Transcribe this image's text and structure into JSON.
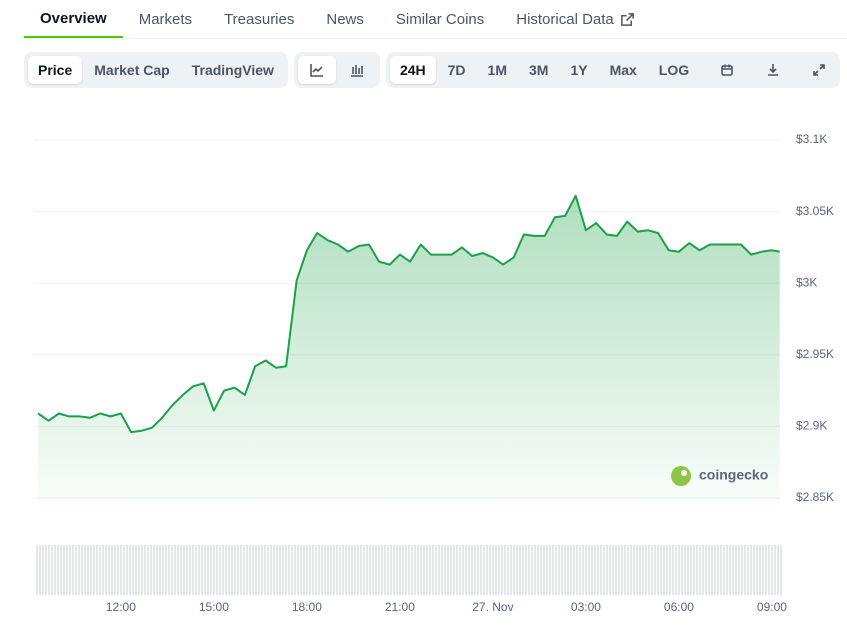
{
  "tabs": [
    "Overview",
    "Markets",
    "Treasuries",
    "News",
    "Similar Coins",
    "Historical Data"
  ],
  "view_buttons": [
    "Price",
    "Market Cap",
    "TradingView"
  ],
  "range_buttons": [
    "24H",
    "7D",
    "1M",
    "3M",
    "1Y",
    "Max",
    "LOG"
  ],
  "watermark": "coingecko",
  "chart_data": {
    "type": "line",
    "color": "#1ba148",
    "grid": true,
    "x": [
      9.33,
      9.67,
      10,
      10.33,
      10.67,
      11,
      11.33,
      11.67,
      12,
      12.33,
      12.67,
      13,
      13.33,
      13.67,
      14,
      14.33,
      14.67,
      15,
      15.33,
      15.67,
      16,
      16.33,
      16.67,
      17,
      17.33,
      17.67,
      18,
      18.33,
      18.67,
      19,
      19.33,
      19.67,
      20,
      20.33,
      20.67,
      21,
      21.33,
      21.67,
      22,
      22.33,
      22.67,
      23,
      23.33,
      23.67,
      24,
      24.33,
      24.67,
      25,
      25.33,
      25.67,
      26,
      26.33,
      26.67,
      27,
      27.33,
      27.67,
      28,
      28.33,
      28.67,
      29,
      29.33,
      29.67,
      30,
      30.33,
      30.67,
      31,
      31.33,
      31.67,
      32,
      32.33,
      32.67,
      33,
      33.25
    ],
    "values": [
      2909,
      2904,
      2909,
      2907,
      2907,
      2906,
      2909,
      2907,
      2909,
      2896,
      2897,
      2899,
      2906,
      2915,
      2922,
      2928,
      2930,
      2911,
      2925,
      2927,
      2922,
      2942,
      2946,
      2941,
      2942,
      3002,
      3023,
      3035,
      3030,
      3027,
      3022,
      3026,
      3027,
      3015,
      3013,
      3020,
      3015,
      3027,
      3020,
      3020,
      3020,
      3025,
      3019,
      3021,
      3018,
      3013,
      3018,
      3034,
      3033,
      3033,
      3046,
      3047,
      3061,
      3037,
      3042,
      3034,
      3033,
      3043,
      3036,
      3037,
      3035,
      3023,
      3022,
      3028,
      3023,
      3027,
      3027,
      3027,
      3027,
      3020,
      3022,
      3023,
      3022
    ],
    "xlim": [
      9.23,
      33.26
    ],
    "xticks": [
      {
        "value": 12,
        "label": "12:00"
      },
      {
        "value": 15,
        "label": "15:00"
      },
      {
        "value": 18,
        "label": "18:00"
      },
      {
        "value": 21,
        "label": "21:00"
      },
      {
        "value": 24,
        "label": "27. Nov"
      },
      {
        "value": 27,
        "label": "03:00"
      },
      {
        "value": 30,
        "label": "06:00"
      },
      {
        "value": 33,
        "label": "09:00"
      }
    ],
    "ylim": [
      2850,
      3100
    ],
    "yticks": [
      {
        "value": 2850,
        "label": "$2.85K"
      },
      {
        "value": 2900,
        "label": "$2.9K"
      },
      {
        "value": 2950,
        "label": "$2.95K"
      },
      {
        "value": 3000,
        "label": "$3K"
      },
      {
        "value": 3050,
        "label": "$3.05K"
      },
      {
        "value": 3100,
        "label": "$3.1K"
      }
    ]
  }
}
